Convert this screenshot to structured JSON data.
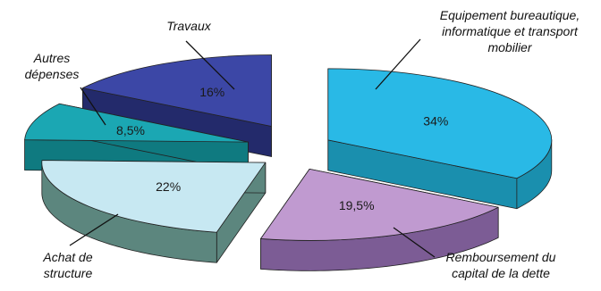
{
  "chart_data": {
    "type": "pie",
    "style": "3d-exploded",
    "legend": "none",
    "slices": [
      {
        "key": "equipement",
        "label_lines": [
          "Equipement bureautique,",
          "informatique et transport",
          "mobilier"
        ],
        "value": 34,
        "value_label": "34%",
        "top_color": "#29b9e6",
        "side_color": "#1a8fae",
        "value_color": "#1a1a1a"
      },
      {
        "key": "remboursement",
        "label_lines": [
          "Remboursement du",
          "capital de la dette"
        ],
        "value": 19.5,
        "value_label": "19,5%",
        "top_color": "#c09ad0",
        "side_color": "#7c5c95",
        "value_color": "#1a1a1a"
      },
      {
        "key": "achat",
        "label_lines": [
          "Achat de",
          "structure"
        ],
        "value": 22,
        "value_label": "22%",
        "top_color": "#c7e8f2",
        "side_color": "#5c867e",
        "value_color": "#1a1a1a"
      },
      {
        "key": "autres",
        "label_lines": [
          "Autres",
          "dépenses"
        ],
        "value": 8.5,
        "value_label": "8,5%",
        "top_color": "#1ba7b3",
        "side_color": "#0f7a80",
        "value_color": "#1a1a1a"
      },
      {
        "key": "travaux",
        "label_lines": [
          "Travaux"
        ],
        "value": 16,
        "value_label": "16%",
        "top_color": "#3c47a6",
        "side_color": "#232a6b",
        "value_color": "#9fb3e6"
      }
    ]
  }
}
